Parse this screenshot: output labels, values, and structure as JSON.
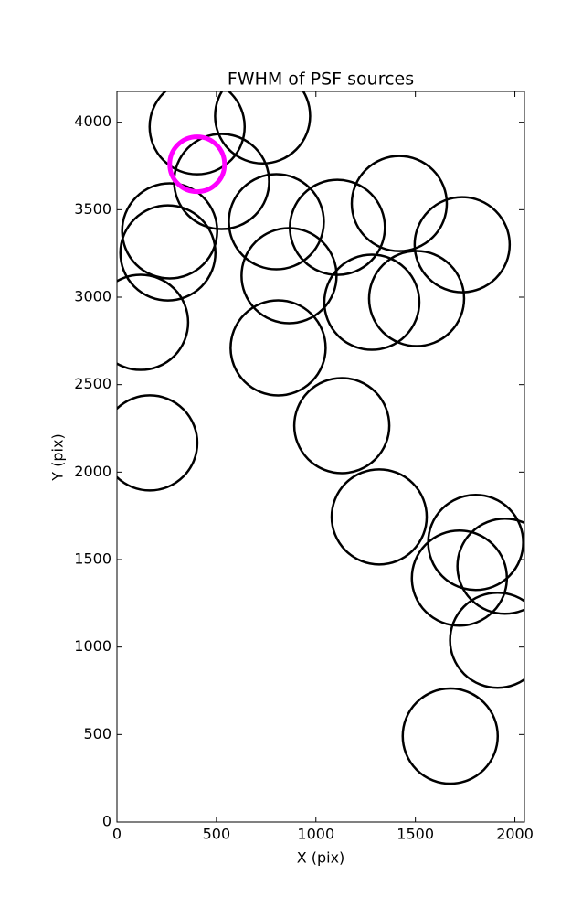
{
  "chart_data": {
    "type": "scatter",
    "title": "FWHM of PSF sources",
    "x_label": "X (pix)",
    "y_label": "Y (pix)",
    "series": [
      {
        "color": "#000000",
        "x": [
          403,
          732,
          526,
          265,
          256,
          801,
          1108,
          1419,
          1735,
          865,
          1281,
          1506,
          119,
          810,
          165,
          1130,
          1318,
          1803,
          1721,
          1950,
          1913,
          1675
        ],
        "values": [
          3974,
          4036,
          3661,
          3379,
          3253,
          3431,
          3399,
          3535,
          3300,
          3123,
          2971,
          2992,
          2856,
          2710,
          2167,
          2266,
          1744,
          1598,
          1394,
          1462,
          1039,
          491
        ]
      },
      {
        "color": "#ff00ff",
        "x": [
          403
        ],
        "values": [
          3760
        ]
      }
    ],
    "xlim": [
      0,
      2048
    ],
    "xticks": [
      0,
      500,
      1000,
      1500,
      2000
    ],
    "ylim": [
      0,
      4176
    ],
    "yticks": [
      0,
      500,
      1000,
      1500,
      2000,
      2500,
      3000,
      3500,
      4000
    ],
    "grid": false
  }
}
